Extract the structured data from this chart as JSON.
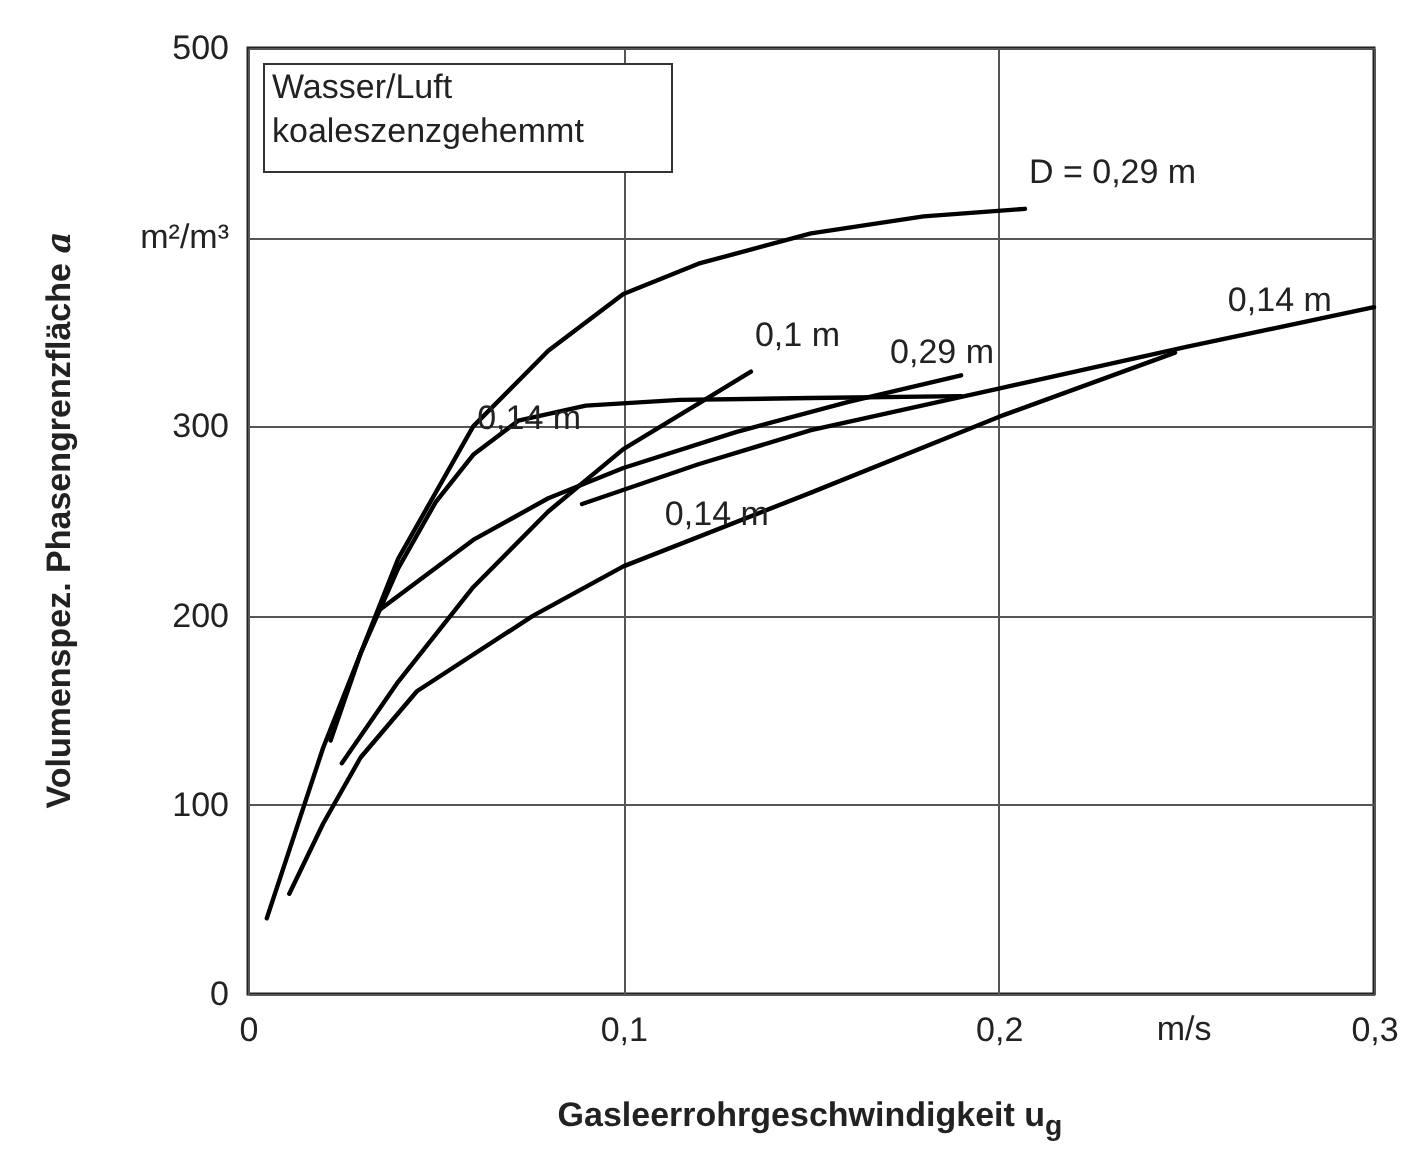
{
  "chart_data": {
    "type": "line",
    "xlabel": "Gasleerrohrgeschwindigkeit  u$_{g}$",
    "ylabel": "Volumenspez. Phasengrenzfläche  a",
    "xlim": [
      0,
      0.3
    ],
    "ylim": [
      0,
      500
    ],
    "xticks": [
      0,
      {
        "value": 0.1,
        "label": "0,1"
      },
      {
        "value": 0.2,
        "label": "0,2"
      },
      {
        "value": 0.3,
        "label": "0,3"
      }
    ],
    "yticks": [
      0,
      100,
      200,
      300,
      {
        "value": 400,
        "label": "m²/m³"
      },
      500
    ],
    "grid": true,
    "marker": "none",
    "line_style": "solid",
    "series": [
      {
        "color": "#000000",
        "x": [
          0.005,
          0.02,
          0.04,
          0.06,
          0.08,
          0.1,
          0.12,
          0.15,
          0.18,
          0.207
        ],
        "values": [
          40,
          130,
          230,
          300,
          340,
          370,
          386,
          402,
          411,
          415
        ]
      },
      {
        "color": "#000000",
        "x": [
          0.022,
          0.03,
          0.04,
          0.05,
          0.06,
          0.072,
          0.09,
          0.115,
          0.15,
          0.19
        ],
        "values": [
          134,
          180,
          225,
          260,
          285,
          303,
          311,
          314,
          315,
          316
        ]
      },
      {
        "color": "#000000",
        "x": [
          0.025,
          0.04,
          0.06,
          0.08,
          0.1,
          0.12,
          0.134
        ],
        "values": [
          122,
          165,
          215,
          255,
          288,
          312,
          329
        ]
      },
      {
        "color": "#000000",
        "x": [
          0.035,
          0.06,
          0.08,
          0.1,
          0.13,
          0.16,
          0.19
        ],
        "values": [
          203,
          240,
          262,
          278,
          297,
          313,
          327
        ]
      },
      {
        "color": "#000000",
        "x": [
          0.089,
          0.12,
          0.15,
          0.2,
          0.25,
          0.3
        ],
        "values": [
          259,
          280,
          298,
          320,
          342,
          363
        ]
      },
      {
        "color": "#000000",
        "x": [
          0.011,
          0.02,
          0.03,
          0.045,
          0.076,
          0.1,
          0.15,
          0.2,
          0.247
        ],
        "values": [
          53,
          90,
          125,
          160,
          200,
          226,
          265,
          305,
          339
        ]
      }
    ],
    "annotations": [
      "Wasser/Luft\nkoaleszenzgehemmt",
      "m/s",
      {
        "text": "D = 0,29 m",
        "x": 0.207,
        "y": 415
      },
      {
        "text": "0,14 m",
        "x": 0.06,
        "y": 285
      },
      {
        "text": "0,1 m",
        "x": 0.134,
        "y": 329
      },
      {
        "text": "0,29 m",
        "x": 0.17,
        "y": 320
      },
      {
        "text": "0,14 m",
        "x": 0.26,
        "y": 347
      },
      {
        "text": "0,14 m",
        "x": 0.11,
        "y": 234
      }
    ]
  }
}
